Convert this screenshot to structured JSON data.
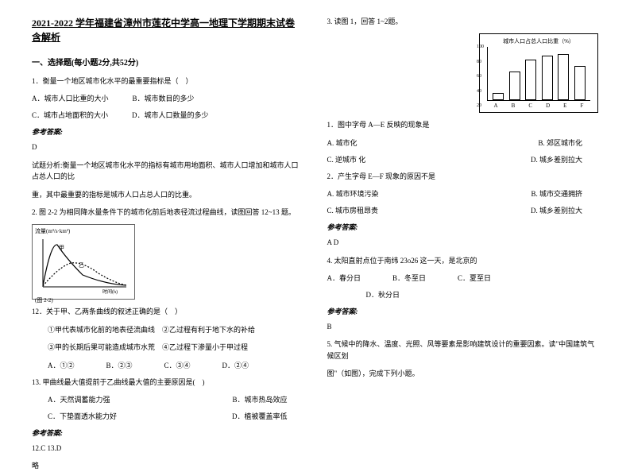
{
  "title": "2021-2022 学年福建省漳州市莲花中学高一地理下学期期末试卷含解析",
  "section1": "一、选择题(每小题2分,共52分)",
  "left": {
    "q1": "1．衡量一个地区城市化水平的最重要指标是（　）",
    "q1a": "A．城市人口比重的大小",
    "q1b": "B．城市数目的多少",
    "q1c": "C．城市占地面积的大小",
    "q1d": "D．城市人口数量的多少",
    "ans_label": "参考答案:",
    "ans1": "D",
    "exp1a": "试题分析:衡量一个地区城市化水平的指标有城市用地面积、城市人口增加和城市人口占总人口的比",
    "exp1b": "重，其中最重要的指标是城市人口占总人口的比重。",
    "fig2_intro": "2. 图 2-2 为相同降水量条件下的城市化前后地表径流过程曲线，读图回答 12~13 题。",
    "curve_caption": "(图 2-2)",
    "curve_ylabel": "流量(m³/s·km²)",
    "curve_xlabel": "时间(h)",
    "q12": "12．关于甲、乙两条曲线的叙述正确的是（　）",
    "q12_1": "①甲代表城市化前的地表径流曲线　②乙过程有利于地下水的补给",
    "q12_2": "③甲的长期后果可能造成城市水荒　④乙过程下渗量小于甲过程",
    "q12a": "A．①②",
    "q12b": "B．②③",
    "q12c": "C．③④",
    "q12d": "D．②④",
    "q13": "13. 甲曲线最大值提前于乙曲线最大值的主要原因是(　)",
    "q13a": "A．天然调蓄能力强",
    "q13b": "B．城市热岛效应",
    "q13c": "C．下垫面透水能力好",
    "q13d": "D．植被覆盖率低",
    "ans2": "12.C  13.D",
    "exp2": "略"
  },
  "right": {
    "q3_intro": "3. 读图 1，回答 1~2题。",
    "chart_title": "城市人口占总人口比重（%）",
    "y_ticks": [
      "100",
      "80",
      "60",
      "40",
      "20"
    ],
    "x_ticks": [
      "A",
      "B",
      "C",
      "D",
      "E",
      "F"
    ],
    "bars": [
      12,
      48,
      68,
      75,
      78,
      58
    ],
    "q3_1": "1．图中字母 A—E 反映的现象是",
    "q3_1a": "A. 城市化",
    "q3_1b": "B. 郊区城市化",
    "q3_1c": "C. 逆城市 化",
    "q3_1d": "D. 城乡差别拉大",
    "q3_2": "2．产生字母 E—F 现象的原因不是",
    "q3_2a": "A. 城市环境污染",
    "q3_2b": "B. 城市交通拥挤",
    "q3_2c": "C. 城市房租昂贵",
    "q3_2d": "D. 城乡差别拉大",
    "ans_label": "参考答案:",
    "ans3": "A  D",
    "q4": "4. 太阳直射点位于南纬 23o26 这一天，是北京的",
    "q4a": "A．春分日",
    "q4b": "B．冬至日",
    "q4c": "C．夏至日",
    "q4d": "D．秋分日",
    "ans4": "B",
    "q5a": "5. 气候中的降水、温度、光照、风等要素是影响建筑设计的重要因素。读\"中国建筑气候区划",
    "q5b": "图\"（如图），完成下列小题。"
  },
  "chart_style": {
    "bar_color": "#ffffff",
    "bar_border": "#000000",
    "axis_color": "#000000",
    "bg": "#ffffff"
  }
}
